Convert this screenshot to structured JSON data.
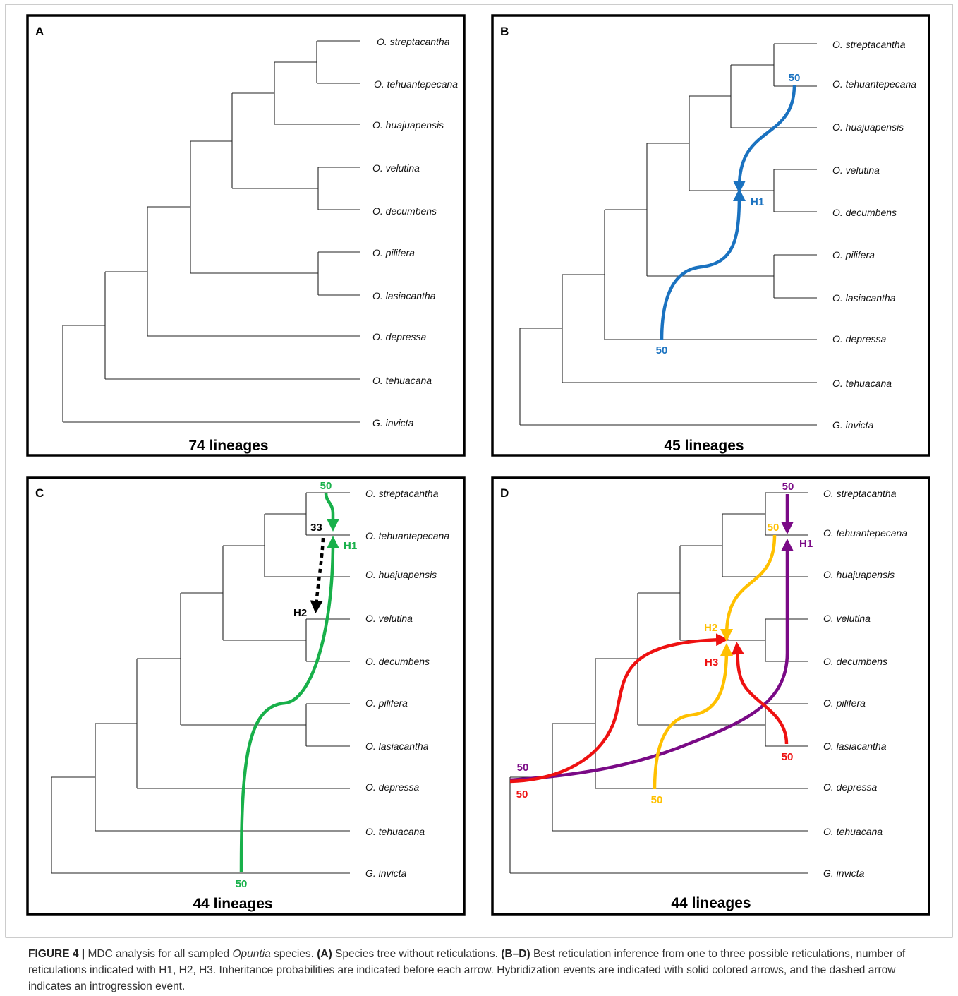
{
  "species": [
    "O. streptacantha",
    "O. tehuantepecana",
    "O. huajuapensis",
    "O. velutina",
    "O. decumbens",
    "O. pilifera",
    "O. lasiacantha",
    "O. depressa",
    "O. tehuacana",
    "G. invicta"
  ],
  "panels": [
    {
      "label": "A",
      "lineages": "74 lineages"
    },
    {
      "label": "B",
      "lineages": "45 lineages"
    },
    {
      "label": "C",
      "lineages": "44 lineages"
    },
    {
      "label": "D",
      "lineages": "44 lineages"
    }
  ],
  "annotations": {
    "B": {
      "h1": "H1",
      "start": "50",
      "end": "50"
    },
    "C": {
      "h1": "H1",
      "h2": "H2",
      "g50": "50",
      "g50b": "50",
      "k33": "33"
    },
    "D": {
      "h1": "H1",
      "h2": "H2",
      "h3": "H3",
      "p50a": "50",
      "p50b": "50",
      "r50a": "50",
      "r50b": "50",
      "y50a": "50",
      "y50b": "50"
    }
  },
  "colors": {
    "blue": "#1a72c0",
    "green": "#18b04a",
    "purple": "#7a0a86",
    "red": "#ee1111",
    "yellow": "#ffc000",
    "black": "#000000"
  },
  "caption": {
    "figure": "FIGURE 4 |",
    "t1": " MDC analysis for all sampled ",
    "genus": "Opuntia",
    "t2": " species. ",
    "a": "(A)",
    "t3": " Species tree without reticulations. ",
    "bd": "(B–D)",
    "t4": " Best reticulation inference from one to three possible reticulations, number of reticulations indicated with H1, H2, H3. Inheritance probabilities are indicated before each arrow. Hybridization events are indicated with solid colored arrows, and the dashed arrow indicates an introgression event."
  }
}
